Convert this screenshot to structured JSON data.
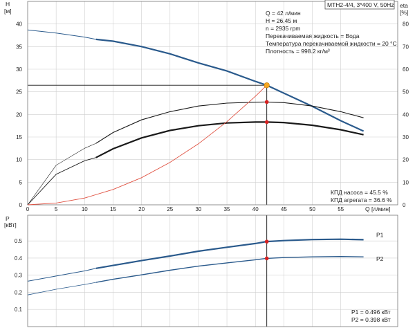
{
  "header": {
    "model": "MTH2-4/4, 3*400 V, 50Hz"
  },
  "info": {
    "lines": [
      "Q = 42 л/мин",
      "H = 26.45 м",
      "n = 2935 rpm",
      "Перекачиваемая жидкость = Вода",
      "Температура перекачиваемой жидкости = 20 °C",
      "Плотность = 998.2 кг/м³"
    ]
  },
  "efficiency_labels": {
    "pump": "КПД насоса = 45.5 %",
    "unit": "КПД агрегата = 36.6 %"
  },
  "power_labels": {
    "p1": "P1 = 0.496 кВт",
    "p2": "P2 = 0.398 кВт"
  },
  "colors": {
    "head": "#2a5a8c",
    "eta": "#1a1a1a",
    "power": "#2a5a8c",
    "system": "#e05040",
    "op_point": "#f5a623",
    "marker": "#d62020",
    "grid": "#cfcfcf"
  },
  "chart_data": [
    {
      "type": "line",
      "title": "",
      "x_axis": {
        "label": "Q [л/мин]",
        "min": 0,
        "max": 65,
        "ticks": [
          0,
          5,
          10,
          15,
          20,
          25,
          30,
          35,
          40,
          45,
          50,
          55
        ]
      },
      "y_axis_left": {
        "label": "H",
        "unit": "[м]",
        "min": 0,
        "max": 45,
        "ticks": [
          0,
          5,
          10,
          15,
          20,
          25,
          30,
          35,
          40
        ]
      },
      "y_axis_right": {
        "label": "eta",
        "unit": "[%]",
        "min": 0,
        "max": 90,
        "ticks": [
          0,
          10,
          20,
          30,
          40,
          50,
          60,
          70,
          80
        ]
      },
      "series": [
        {
          "axis": "left",
          "style": "head",
          "x": [
            0,
            5,
            10,
            12,
            15,
            20,
            25,
            30,
            35,
            40,
            42,
            45,
            50,
            55,
            59
          ],
          "y": [
            38.7,
            38.0,
            37.1,
            36.6,
            36.2,
            35.0,
            33.4,
            31.4,
            29.6,
            27.3,
            26.45,
            24.7,
            21.8,
            18.6,
            16.3
          ]
        },
        {
          "axis": "right",
          "style": "eta_pump",
          "x": [
            0,
            5,
            10,
            12,
            15,
            20,
            25,
            30,
            35,
            40,
            42,
            45,
            50,
            55,
            59
          ],
          "y": [
            0,
            17.5,
            25.0,
            27.2,
            32.0,
            37.6,
            41.2,
            43.7,
            45.0,
            45.4,
            45.5,
            45.2,
            43.7,
            41.2,
            38.5
          ]
        },
        {
          "axis": "right",
          "style": "eta_unit",
          "x": [
            0,
            5,
            10,
            12,
            15,
            20,
            25,
            30,
            35,
            40,
            42,
            45,
            50,
            55,
            59
          ],
          "y": [
            0,
            13.5,
            19.5,
            20.9,
            24.8,
            29.6,
            32.9,
            35.0,
            36.2,
            36.6,
            36.6,
            36.4,
            35.2,
            33.2,
            31.0
          ]
        },
        {
          "axis": "left",
          "style": "system",
          "x": [
            0,
            5,
            10,
            15,
            20,
            25,
            30,
            35,
            40,
            42
          ],
          "y": [
            0,
            0.4,
            1.5,
            3.4,
            6.0,
            9.4,
            13.5,
            18.4,
            24.0,
            26.45
          ]
        }
      ],
      "operating_point": {
        "x": 42,
        "y": 26.45
      },
      "markers_right": [
        {
          "x": 42,
          "y": 45.5
        },
        {
          "x": 42,
          "y": 36.6
        }
      ]
    },
    {
      "type": "line",
      "title": "",
      "x_axis": {
        "min": 0,
        "max": 65
      },
      "y_axis_left": {
        "label": "P",
        "unit": "[кВт]",
        "min": 0,
        "max": 0.65,
        "ticks": [
          0.1,
          0.2,
          0.3,
          0.4,
          0.5
        ]
      },
      "series": [
        {
          "name": "P1",
          "x": [
            0,
            5,
            10,
            12,
            15,
            20,
            25,
            30,
            35,
            40,
            42,
            45,
            50,
            55,
            59
          ],
          "y": [
            0.265,
            0.295,
            0.325,
            0.34,
            0.357,
            0.385,
            0.412,
            0.44,
            0.463,
            0.485,
            0.496,
            0.502,
            0.508,
            0.51,
            0.507
          ]
        },
        {
          "name": "P2",
          "x": [
            0,
            5,
            10,
            12,
            15,
            20,
            25,
            30,
            35,
            40,
            42,
            45,
            50,
            55,
            59
          ],
          "y": [
            0.185,
            0.218,
            0.246,
            0.258,
            0.276,
            0.302,
            0.329,
            0.353,
            0.372,
            0.39,
            0.398,
            0.403,
            0.407,
            0.409,
            0.407
          ]
        }
      ],
      "operating_points": [
        {
          "x": 42,
          "y": 0.496
        },
        {
          "x": 42,
          "y": 0.398
        }
      ]
    }
  ]
}
